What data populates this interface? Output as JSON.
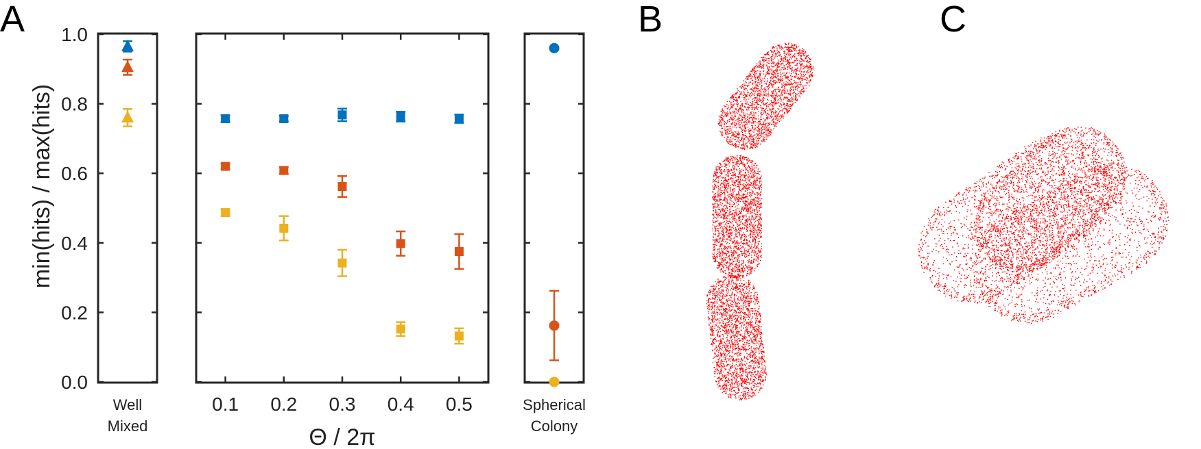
{
  "panels": {
    "a": "A",
    "b": "B",
    "c": "C"
  },
  "chart_data": [
    {
      "type": "scatter",
      "title": "",
      "xlabel": "Well\nMixed",
      "ylabel": "min(hits) / max(hits)",
      "ylim": [
        0,
        1.0
      ],
      "yticks": [
        "0.0",
        "0.2",
        "0.4",
        "0.6",
        "0.8",
        "1.0"
      ],
      "marker": "triangle",
      "series": [
        {
          "color": "#0072BD",
          "values": [
            0.965
          ],
          "err": [
            0.015
          ]
        },
        {
          "color": "#D95319",
          "values": [
            0.905
          ],
          "err": [
            0.022
          ]
        },
        {
          "color": "#EDB120",
          "values": [
            0.76
          ],
          "err": [
            0.025
          ]
        }
      ],
      "x_label_lines": [
        "Well",
        "Mixed"
      ]
    },
    {
      "type": "scatter",
      "title": "",
      "xlabel": "Θ / 2π",
      "ylabel": "",
      "x": [
        "0.1",
        "0.2",
        "0.3",
        "0.4",
        "0.5"
      ],
      "xlim": [
        0.05,
        0.55
      ],
      "ylim": [
        0,
        1.0
      ],
      "marker": "square",
      "series": [
        {
          "color": "#0072BD",
          "values": [
            0.757,
            0.757,
            0.768,
            0.763,
            0.757
          ],
          "err": [
            0.01,
            0.008,
            0.018,
            0.014,
            0.012
          ]
        },
        {
          "color": "#D95319",
          "values": [
            0.62,
            0.608,
            0.562,
            0.398,
            0.375
          ],
          "err": [
            0.008,
            0.01,
            0.03,
            0.035,
            0.05
          ]
        },
        {
          "color": "#EDB120",
          "values": [
            0.487,
            0.442,
            0.342,
            0.152,
            0.132
          ],
          "err": [
            0.01,
            0.035,
            0.038,
            0.02,
            0.022
          ]
        }
      ]
    },
    {
      "type": "scatter",
      "title": "",
      "xlabel": "Spherical\nColony",
      "ylabel": "",
      "ylim": [
        0,
        1.0
      ],
      "marker": "circle",
      "series": [
        {
          "color": "#0072BD",
          "values": [
            0.96
          ],
          "err": [
            0.0
          ]
        },
        {
          "color": "#D95319",
          "values": [
            0.162
          ],
          "err": [
            0.1
          ]
        },
        {
          "color": "#EDB120",
          "values": [
            0.0
          ],
          "err": [
            0.0
          ]
        }
      ],
      "x_label_lines": [
        "Spherical",
        "Colony"
      ]
    }
  ],
  "point_cloud_color": "#FF0000"
}
